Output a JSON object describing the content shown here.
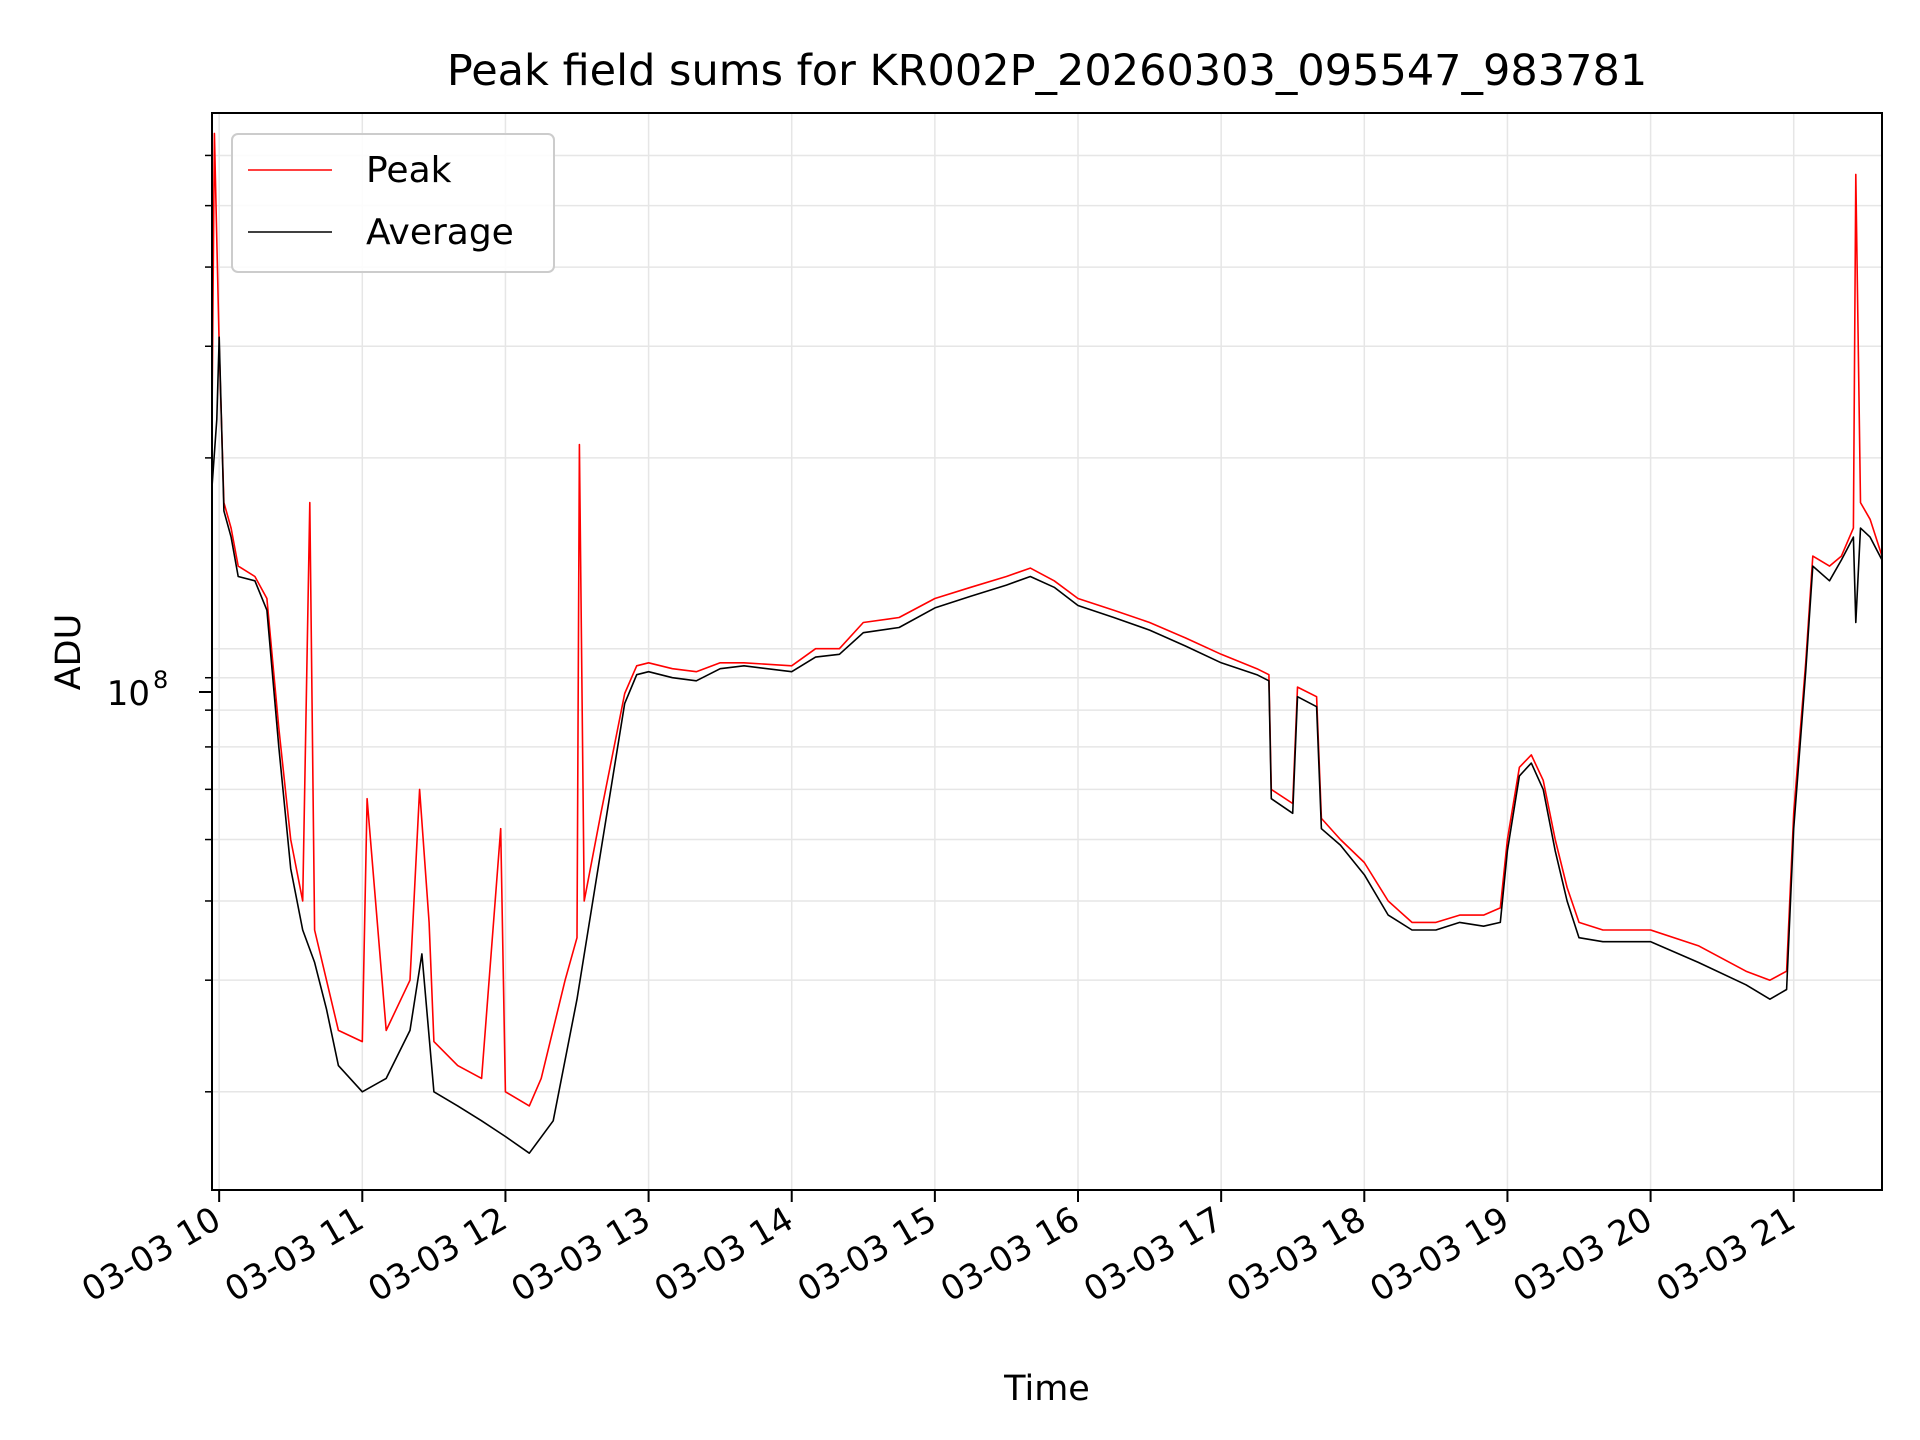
{
  "chart_data": {
    "type": "line",
    "title": "Peak field sums for KR002P_20260303_095547_983781",
    "xlabel": "Time",
    "ylabel": "ADU",
    "x_tick_labels": [
      "03-03 10",
      "03-03 11",
      "03-03 12",
      "03-03 13",
      "03-03 14",
      "03-03 15",
      "03-03 16",
      "03-03 17",
      "03-03 18",
      "03-03 19",
      "03-03 20",
      "03-03 21"
    ],
    "y_scale": "log",
    "y_major_tick_label": "10",
    "y_major_tick_exponent": "8",
    "xlim": [
      "2026-03-03 09:57",
      "2026-03-03 21:37"
    ],
    "ylim": [
      14000000,
      700000000
    ],
    "grid": true,
    "legend_position": "top-left",
    "series": [
      {
        "name": "Peak",
        "color": "#ff0000",
        "points": [
          [
            "2026-03-03 09:57",
            230000000
          ],
          [
            "2026-03-03 09:58",
            650000000
          ],
          [
            "2026-03-03 10:00",
            300000000
          ],
          [
            "2026-03-03 10:02",
            170000000
          ],
          [
            "2026-03-03 10:05",
            155000000
          ],
          [
            "2026-03-03 10:08",
            135000000
          ],
          [
            "2026-03-03 10:15",
            130000000
          ],
          [
            "2026-03-03 10:20",
            120000000
          ],
          [
            "2026-03-03 10:25",
            75000000
          ],
          [
            "2026-03-03 10:30",
            50000000
          ],
          [
            "2026-03-03 10:35",
            40000000
          ],
          [
            "2026-03-03 10:38",
            170000000
          ],
          [
            "2026-03-03 10:40",
            36000000
          ],
          [
            "2026-03-03 10:45",
            30000000
          ],
          [
            "2026-03-03 10:50",
            25000000
          ],
          [
            "2026-03-03 11:00",
            24000000
          ],
          [
            "2026-03-03 11:02",
            58000000
          ],
          [
            "2026-03-03 11:10",
            25000000
          ],
          [
            "2026-03-03 11:20",
            30000000
          ],
          [
            "2026-03-03 11:24",
            60000000
          ],
          [
            "2026-03-03 11:28",
            37000000
          ],
          [
            "2026-03-03 11:30",
            24000000
          ],
          [
            "2026-03-03 11:40",
            22000000
          ],
          [
            "2026-03-03 11:50",
            21000000
          ],
          [
            "2026-03-03 11:58",
            52000000
          ],
          [
            "2026-03-03 12:00",
            20000000
          ],
          [
            "2026-03-03 12:10",
            19000000
          ],
          [
            "2026-03-03 12:15",
            21000000
          ],
          [
            "2026-03-03 12:25",
            30000000
          ],
          [
            "2026-03-03 12:30",
            35000000
          ],
          [
            "2026-03-03 12:31",
            210000000
          ],
          [
            "2026-03-03 12:33",
            40000000
          ],
          [
            "2026-03-03 12:40",
            55000000
          ],
          [
            "2026-03-03 12:50",
            85000000
          ],
          [
            "2026-03-03 12:55",
            94000000
          ],
          [
            "2026-03-03 13:00",
            95000000
          ],
          [
            "2026-03-03 13:10",
            93000000
          ],
          [
            "2026-03-03 13:20",
            92000000
          ],
          [
            "2026-03-03 13:30",
            95000000
          ],
          [
            "2026-03-03 13:40",
            95000000
          ],
          [
            "2026-03-03 14:00",
            94000000
          ],
          [
            "2026-03-03 14:10",
            100000000
          ],
          [
            "2026-03-03 14:20",
            100000000
          ],
          [
            "2026-03-03 14:30",
            110000000
          ],
          [
            "2026-03-03 14:45",
            112000000
          ],
          [
            "2026-03-03 15:00",
            120000000
          ],
          [
            "2026-03-03 15:15",
            125000000
          ],
          [
            "2026-03-03 15:30",
            130000000
          ],
          [
            "2026-03-03 15:40",
            134000000
          ],
          [
            "2026-03-03 15:50",
            128000000
          ],
          [
            "2026-03-03 16:00",
            120000000
          ],
          [
            "2026-03-03 16:15",
            115000000
          ],
          [
            "2026-03-03 16:30",
            110000000
          ],
          [
            "2026-03-03 16:45",
            104000000
          ],
          [
            "2026-03-03 17:00",
            98000000
          ],
          [
            "2026-03-03 17:15",
            93000000
          ],
          [
            "2026-03-03 17:20",
            91000000
          ],
          [
            "2026-03-03 17:21",
            60000000
          ],
          [
            "2026-03-03 17:30",
            57000000
          ],
          [
            "2026-03-03 17:32",
            87000000
          ],
          [
            "2026-03-03 17:40",
            84000000
          ],
          [
            "2026-03-03 17:42",
            54000000
          ],
          [
            "2026-03-03 17:50",
            50000000
          ],
          [
            "2026-03-03 18:00",
            46000000
          ],
          [
            "2026-03-03 18:10",
            40000000
          ],
          [
            "2026-03-03 18:20",
            37000000
          ],
          [
            "2026-03-03 18:30",
            37000000
          ],
          [
            "2026-03-03 18:40",
            38000000
          ],
          [
            "2026-03-03 18:50",
            38000000
          ],
          [
            "2026-03-03 18:57",
            39000000
          ],
          [
            "2026-03-03 19:00",
            50000000
          ],
          [
            "2026-03-03 19:05",
            65000000
          ],
          [
            "2026-03-03 19:10",
            68000000
          ],
          [
            "2026-03-03 19:15",
            62000000
          ],
          [
            "2026-03-03 19:20",
            50000000
          ],
          [
            "2026-03-03 19:25",
            42000000
          ],
          [
            "2026-03-03 19:30",
            37000000
          ],
          [
            "2026-03-03 19:40",
            36000000
          ],
          [
            "2026-03-03 20:00",
            36000000
          ],
          [
            "2026-03-03 20:20",
            34000000
          ],
          [
            "2026-03-03 20:40",
            31000000
          ],
          [
            "2026-03-03 20:50",
            30000000
          ],
          [
            "2026-03-03 20:57",
            31000000
          ],
          [
            "2026-03-03 21:00",
            55000000
          ],
          [
            "2026-03-03 21:05",
            95000000
          ],
          [
            "2026-03-03 21:08",
            140000000
          ],
          [
            "2026-03-03 21:15",
            135000000
          ],
          [
            "2026-03-03 21:20",
            140000000
          ],
          [
            "2026-03-03 21:25",
            155000000
          ],
          [
            "2026-03-03 21:26",
            560000000
          ],
          [
            "2026-03-03 21:28",
            170000000
          ],
          [
            "2026-03-03 21:32",
            160000000
          ],
          [
            "2026-03-03 21:37",
            140000000
          ]
        ]
      },
      {
        "name": "Average",
        "color": "#000000",
        "points": [
          [
            "2026-03-03 09:57",
            180000000
          ],
          [
            "2026-03-03 09:59",
            230000000
          ],
          [
            "2026-03-03 10:00",
            310000000
          ],
          [
            "2026-03-03 10:02",
            165000000
          ],
          [
            "2026-03-03 10:05",
            150000000
          ],
          [
            "2026-03-03 10:08",
            130000000
          ],
          [
            "2026-03-03 10:15",
            128000000
          ],
          [
            "2026-03-03 10:20",
            115000000
          ],
          [
            "2026-03-03 10:25",
            70000000
          ],
          [
            "2026-03-03 10:30",
            45000000
          ],
          [
            "2026-03-03 10:35",
            36000000
          ],
          [
            "2026-03-03 10:40",
            32000000
          ],
          [
            "2026-03-03 10:45",
            27000000
          ],
          [
            "2026-03-03 10:50",
            22000000
          ],
          [
            "2026-03-03 11:00",
            20000000
          ],
          [
            "2026-03-03 11:10",
            21000000
          ],
          [
            "2026-03-03 11:20",
            25000000
          ],
          [
            "2026-03-03 11:25",
            33000000
          ],
          [
            "2026-03-03 11:30",
            20000000
          ],
          [
            "2026-03-03 11:40",
            19000000
          ],
          [
            "2026-03-03 11:50",
            18000000
          ],
          [
            "2026-03-03 12:00",
            17000000
          ],
          [
            "2026-03-03 12:10",
            16000000
          ],
          [
            "2026-03-03 12:20",
            18000000
          ],
          [
            "2026-03-03 12:30",
            28000000
          ],
          [
            "2026-03-03 12:40",
            48000000
          ],
          [
            "2026-03-03 12:50",
            82000000
          ],
          [
            "2026-03-03 12:55",
            91000000
          ],
          [
            "2026-03-03 13:00",
            92000000
          ],
          [
            "2026-03-03 13:10",
            90000000
          ],
          [
            "2026-03-03 13:20",
            89000000
          ],
          [
            "2026-03-03 13:30",
            93000000
          ],
          [
            "2026-03-03 13:40",
            94000000
          ],
          [
            "2026-03-03 14:00",
            92000000
          ],
          [
            "2026-03-03 14:10",
            97000000
          ],
          [
            "2026-03-03 14:20",
            98000000
          ],
          [
            "2026-03-03 14:30",
            106000000
          ],
          [
            "2026-03-03 14:45",
            108000000
          ],
          [
            "2026-03-03 15:00",
            116000000
          ],
          [
            "2026-03-03 15:15",
            121000000
          ],
          [
            "2026-03-03 15:30",
            126000000
          ],
          [
            "2026-03-03 15:40",
            130000000
          ],
          [
            "2026-03-03 15:50",
            125000000
          ],
          [
            "2026-03-03 16:00",
            117000000
          ],
          [
            "2026-03-03 16:15",
            112000000
          ],
          [
            "2026-03-03 16:30",
            107000000
          ],
          [
            "2026-03-03 16:45",
            101000000
          ],
          [
            "2026-03-03 17:00",
            95000000
          ],
          [
            "2026-03-03 17:15",
            91000000
          ],
          [
            "2026-03-03 17:20",
            89000000
          ],
          [
            "2026-03-03 17:21",
            58000000
          ],
          [
            "2026-03-03 17:30",
            55000000
          ],
          [
            "2026-03-03 17:32",
            84000000
          ],
          [
            "2026-03-03 17:40",
            81000000
          ],
          [
            "2026-03-03 17:42",
            52000000
          ],
          [
            "2026-03-03 17:50",
            49000000
          ],
          [
            "2026-03-03 18:00",
            44000000
          ],
          [
            "2026-03-03 18:10",
            38000000
          ],
          [
            "2026-03-03 18:20",
            36000000
          ],
          [
            "2026-03-03 18:30",
            36000000
          ],
          [
            "2026-03-03 18:40",
            37000000
          ],
          [
            "2026-03-03 18:50",
            36500000
          ],
          [
            "2026-03-03 18:57",
            37000000
          ],
          [
            "2026-03-03 19:00",
            48000000
          ],
          [
            "2026-03-03 19:05",
            63000000
          ],
          [
            "2026-03-03 19:10",
            66000000
          ],
          [
            "2026-03-03 19:15",
            60000000
          ],
          [
            "2026-03-03 19:20",
            48000000
          ],
          [
            "2026-03-03 19:25",
            40000000
          ],
          [
            "2026-03-03 19:30",
            35000000
          ],
          [
            "2026-03-03 19:40",
            34500000
          ],
          [
            "2026-03-03 20:00",
            34500000
          ],
          [
            "2026-03-03 20:20",
            32000000
          ],
          [
            "2026-03-03 20:40",
            29500000
          ],
          [
            "2026-03-03 20:50",
            28000000
          ],
          [
            "2026-03-03 20:57",
            29000000
          ],
          [
            "2026-03-03 21:00",
            52000000
          ],
          [
            "2026-03-03 21:05",
            92000000
          ],
          [
            "2026-03-03 21:08",
            135000000
          ],
          [
            "2026-03-03 21:15",
            128000000
          ],
          [
            "2026-03-03 21:20",
            138000000
          ],
          [
            "2026-03-03 21:25",
            150000000
          ],
          [
            "2026-03-03 21:26",
            110000000
          ],
          [
            "2026-03-03 21:28",
            155000000
          ],
          [
            "2026-03-03 21:32",
            150000000
          ],
          [
            "2026-03-03 21:37",
            138000000
          ]
        ]
      }
    ]
  }
}
